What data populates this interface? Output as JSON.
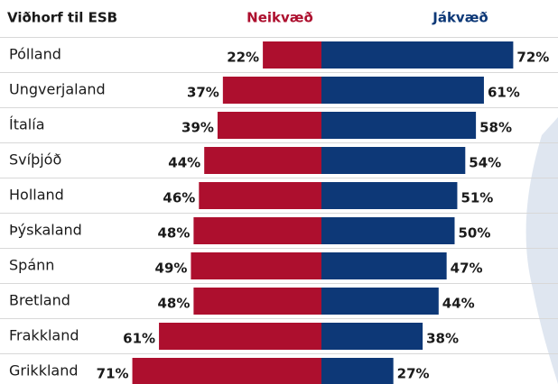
{
  "chart_data": {
    "type": "diverging_bar",
    "title": "Viðhorf til ESB",
    "categories": [
      "Pólland",
      "Ungverjaland",
      "Ítalía",
      "Svíþjóð",
      "Holland",
      "Þýskaland",
      "Spánn",
      "Bretland",
      "Frakkland",
      "Grikkland"
    ],
    "series": [
      {
        "name": "Neikvæð",
        "color": "#ad0f2e",
        "side": "left",
        "values": [
          22,
          37,
          39,
          44,
          46,
          48,
          49,
          48,
          61,
          71
        ],
        "value_labels": [
          "22%",
          "37%",
          "39%",
          "44%",
          "46%",
          "48%",
          "49%",
          "48%",
          "61%",
          "71%"
        ]
      },
      {
        "name": "Jákvæð",
        "color": "#0d3877",
        "side": "right",
        "values": [
          72,
          61,
          58,
          54,
          51,
          50,
          47,
          44,
          38,
          27
        ],
        "value_labels": [
          "72%",
          "61%",
          "58%",
          "54%",
          "51%",
          "50%",
          "47%",
          "44%",
          "38%",
          "27%"
        ]
      }
    ]
  }
}
